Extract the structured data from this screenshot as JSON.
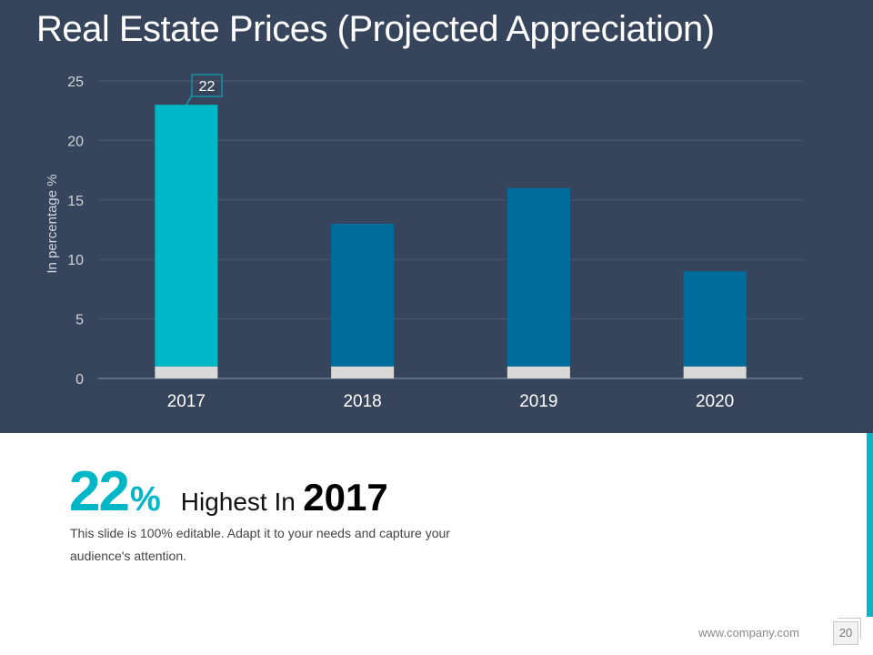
{
  "slide": {
    "title": "Real Estate Prices (Projected Appreciation)",
    "highlight_value": "22",
    "highlight_unit": "%",
    "highlight_text": "Highest  In",
    "highlight_year": "2017",
    "description": "This slide is 100% editable. Adapt it to your needs and capture your audience's attention.",
    "footer_url": "www.company.com",
    "page_number": "20"
  },
  "chart_data": {
    "type": "bar",
    "categories": [
      "2017",
      "2018",
      "2019",
      "2020"
    ],
    "values": [
      23,
      13,
      16,
      9
    ],
    "base_values": [
      1,
      1,
      1,
      1
    ],
    "ylabel": "In percentage %",
    "xlabel": "",
    "ylim": [
      0,
      25
    ],
    "yticks": [
      0,
      5,
      10,
      15,
      20,
      25
    ],
    "grid": true,
    "callout": {
      "category": "2017",
      "label": "22"
    },
    "colors": {
      "highlight": "#00b7c7",
      "bar": "#006d9c",
      "base": "#d9d9d9",
      "grid": "#4c596e",
      "text": "#d0d4db"
    }
  }
}
